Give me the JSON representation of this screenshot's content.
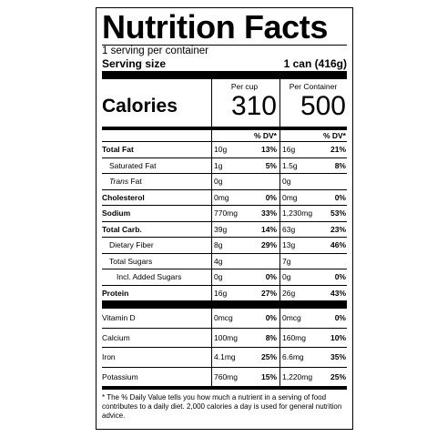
{
  "title": "Nutrition Facts",
  "servings_per_container": "1 serving per container",
  "serving_size_label": "Serving size",
  "serving_size_value": "1 can (416g)",
  "calories_label": "Calories",
  "col1_header": "Per cup",
  "col2_header": "Per Container",
  "calories_cup": "310",
  "calories_container": "500",
  "dv_header": "% DV*",
  "nutrients": [
    {
      "name": "Total Fat",
      "cup_amt": "10g",
      "cup_dv": "13%",
      "cont_amt": "16g",
      "cont_dv": "21%"
    },
    {
      "name": "Saturated Fat",
      "cup_amt": "1g",
      "cup_dv": "5%",
      "cont_amt": "1.5g",
      "cont_dv": "8%"
    },
    {
      "name_italic": "Trans",
      "name_rest": " Fat",
      "cup_amt": "0g",
      "cup_dv": "",
      "cont_amt": "0g",
      "cont_dv": ""
    },
    {
      "name": "Cholesterol",
      "cup_amt": "0mg",
      "cup_dv": "0%",
      "cont_amt": "0mg",
      "cont_dv": "0%"
    },
    {
      "name": "Sodium",
      "cup_amt": "770mg",
      "cup_dv": "33%",
      "cont_amt": "1,230mg",
      "cont_dv": "53%"
    },
    {
      "name": "Total Carb.",
      "cup_amt": "39g",
      "cup_dv": "14%",
      "cont_amt": "63g",
      "cont_dv": "23%"
    },
    {
      "name": "Dietary Fiber",
      "cup_amt": "8g",
      "cup_dv": "29%",
      "cont_amt": "13g",
      "cont_dv": "46%"
    },
    {
      "name": "Total Sugars",
      "cup_amt": "4g",
      "cup_dv": "",
      "cont_amt": "7g",
      "cont_dv": ""
    },
    {
      "name": "Incl. Added Sugars",
      "cup_amt": "0g",
      "cup_dv": "0%",
      "cont_amt": "0g",
      "cont_dv": "0%"
    },
    {
      "name": "Protein",
      "cup_amt": "16g",
      "cup_dv": "27%",
      "cont_amt": "26g",
      "cont_dv": "43%"
    },
    {
      "name": "Vitamin D",
      "cup_amt": "0mcg",
      "cup_dv": "0%",
      "cont_amt": "0mcg",
      "cont_dv": "0%"
    },
    {
      "name": "Calcium",
      "cup_amt": "100mg",
      "cup_dv": "8%",
      "cont_amt": "160mg",
      "cont_dv": "10%"
    },
    {
      "name": "Iron",
      "cup_amt": "4.1mg",
      "cup_dv": "25%",
      "cont_amt": "6.6mg",
      "cont_dv": "35%"
    },
    {
      "name": "Potassium",
      "cup_amt": "760mg",
      "cup_dv": "15%",
      "cont_amt": "1,220mg",
      "cont_dv": "25%"
    }
  ],
  "footnote": "* The % Daily Value tells you how much a nutrient in a serving of food contributes to a daily diet. 2,000 calories a day is used for general nutrition advice."
}
